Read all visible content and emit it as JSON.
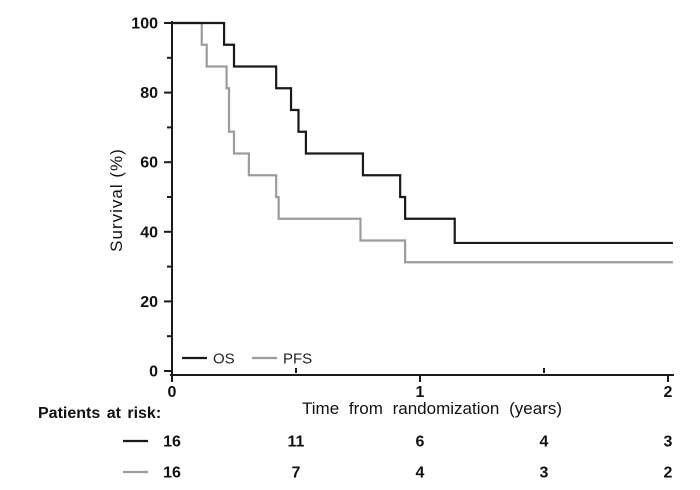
{
  "figure": {
    "background": "#ffffff",
    "text_color": "#111111"
  },
  "chart_data": {
    "type": "line",
    "subtype": "kaplan-meier-step",
    "title": "",
    "xlabel": "Time from randomization (years)",
    "ylabel": "Survival (%)",
    "xlim": [
      0,
      2
    ],
    "ylim": [
      0,
      100
    ],
    "x_major_ticks": [
      0,
      1,
      2
    ],
    "x_minor_ticks": [
      0.5,
      1.5
    ],
    "y_major_ticks": [
      0,
      20,
      40,
      60,
      80,
      100
    ],
    "y_minor_ticks": [
      10,
      30,
      50,
      70,
      90
    ],
    "grid": false,
    "legend_position": "inside-bottom-left",
    "axis_color": "#1a1a1a",
    "series": [
      {
        "name": "OS",
        "color": "#1a1a1a",
        "end_time": 2.02,
        "steps": [
          [
            0,
            100
          ],
          [
            0.21,
            93.75
          ],
          [
            0.25,
            87.5
          ],
          [
            0.42,
            81.25
          ],
          [
            0.48,
            75
          ],
          [
            0.51,
            68.75
          ],
          [
            0.54,
            62.5
          ],
          [
            0.77,
            56.25
          ],
          [
            0.92,
            50
          ],
          [
            0.94,
            43.75
          ],
          [
            1.14,
            36.8
          ]
        ]
      },
      {
        "name": "PFS",
        "color": "#9c9c9c",
        "end_time": 2.02,
        "steps": [
          [
            0,
            100
          ],
          [
            0.12,
            93.75
          ],
          [
            0.14,
            87.5
          ],
          [
            0.22,
            81.25
          ],
          [
            0.23,
            68.75
          ],
          [
            0.25,
            62.5
          ],
          [
            0.31,
            56.25
          ],
          [
            0.42,
            50
          ],
          [
            0.43,
            43.75
          ],
          [
            0.76,
            37.5
          ],
          [
            0.94,
            31.25
          ]
        ]
      }
    ],
    "risk_table": {
      "label": "Patients at risk:",
      "times": [
        0,
        0.5,
        1,
        1.5,
        2
      ],
      "rows": [
        {
          "name": "OS",
          "color": "#1a1a1a",
          "counts": [
            16,
            11,
            6,
            4,
            3
          ]
        },
        {
          "name": "PFS",
          "color": "#9c9c9c",
          "counts": [
            16,
            7,
            4,
            3,
            2
          ]
        }
      ]
    }
  }
}
